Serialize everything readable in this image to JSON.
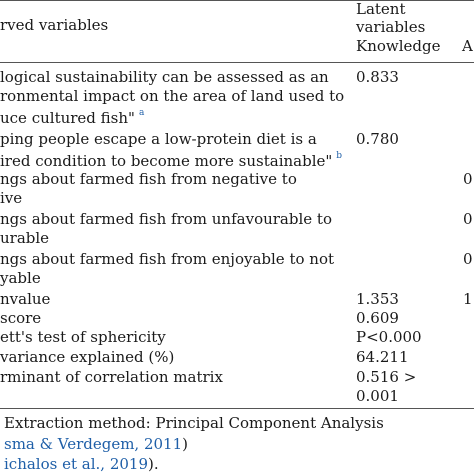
{
  "header": {
    "col1": "rved variables",
    "latent_line1": "Latent",
    "latent_line2": "variables",
    "knowledge": "Knowledge",
    "col_clipped": "A"
  },
  "rows": [
    {
      "line1": "logical sustainability can be assessed as an",
      "line2": "ronmental impact on the area of land used to",
      "line3": "uce cultured fish\"",
      "mark": "a",
      "knowledge": "0.833",
      "clipped": ""
    },
    {
      "line1": "ping people escape a low-protein diet is a",
      "line2": "ired condition to become more sustainable\"",
      "mark": "b",
      "knowledge": "0.780",
      "clipped": ""
    },
    {
      "line1": "ngs about farmed fish from negative to",
      "line2": "ive",
      "knowledge": "",
      "clipped": "0"
    },
    {
      "line1": "ngs about farmed fish from unfavourable to",
      "line2": "urable",
      "knowledge": "",
      "clipped": "0"
    },
    {
      "line1": "ngs about farmed fish from enjoyable to not",
      "line2": "yable",
      "knowledge": "",
      "clipped": "0"
    }
  ],
  "stats": [
    {
      "label": "nvalue",
      "value": "1.353",
      "clipped": "1"
    },
    {
      "label": " score",
      "value": "0.609",
      "clipped": ""
    },
    {
      "label": "ett's test of sphericity",
      "value": "P<0.000",
      "clipped": ""
    },
    {
      "label": " variance explained (%)",
      "value": "64.211",
      "clipped": ""
    },
    {
      "label": "rminant of correlation matrix",
      "value_line1": "0.516 >",
      "value_line2": "0.001",
      "clipped": ""
    }
  ],
  "footnotes": {
    "extraction": "Extraction method: Principal Component Analysis",
    "ref_a": "sma & Verdegem, 2011",
    "ref_a_close": ")",
    "ref_b": "ichalos et al., 2019",
    "ref_b_close": ")."
  }
}
